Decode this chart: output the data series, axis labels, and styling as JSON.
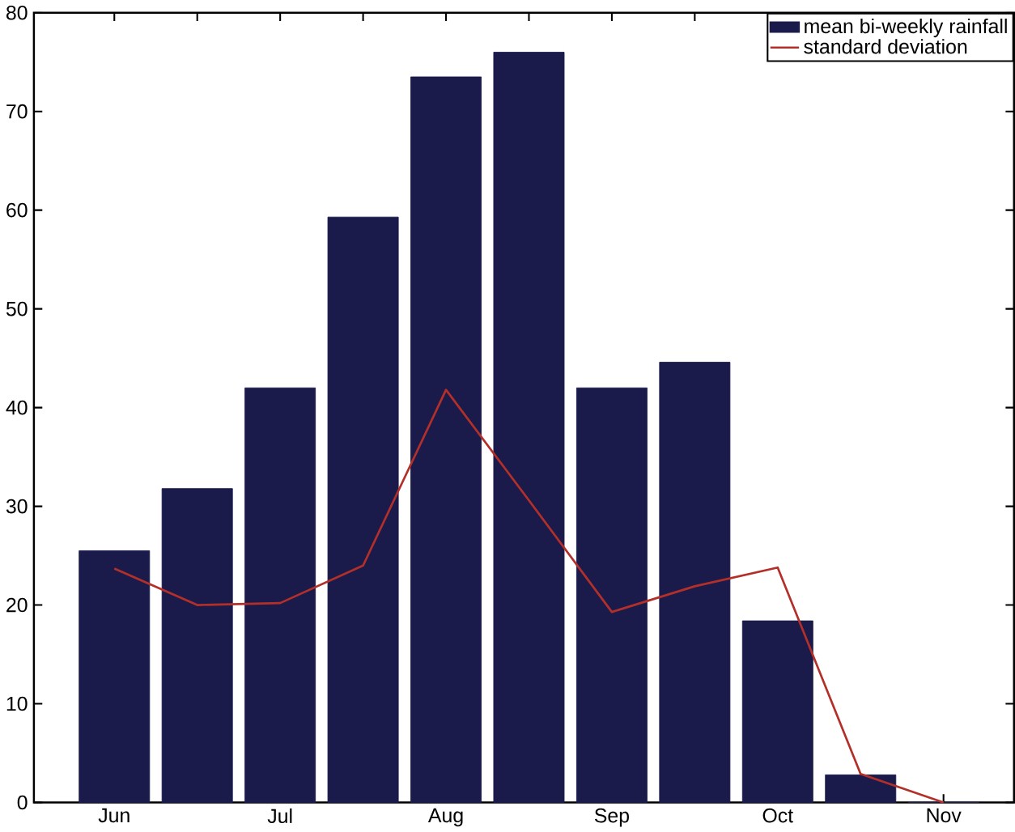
{
  "chart_data": {
    "type": "bar",
    "categories": [
      "Jun",
      null,
      "Jul",
      null,
      "Aug",
      null,
      "Sep",
      null,
      "Oct",
      null,
      "Nov"
    ],
    "series": [
      {
        "name": "mean bi-weekly rainfall",
        "color": "#1b1b4b",
        "values": [
          25.5,
          31.8,
          42,
          59.3,
          73.5,
          76,
          42,
          44.6,
          18.4,
          2.8,
          0
        ]
      },
      {
        "name": "standard deviation",
        "type": "line",
        "color": "#b3302a",
        "values": [
          23.7,
          20,
          20.2,
          24,
          41.8,
          30.6,
          19.3,
          21.9,
          23.8,
          2.9,
          0
        ]
      }
    ],
    "ylim": [
      0,
      80
    ],
    "yticks": [
      0,
      10,
      20,
      30,
      40,
      50,
      60,
      70,
      80
    ],
    "legend": "top right",
    "grid": false,
    "marker": "none",
    "line_style": "solid"
  }
}
